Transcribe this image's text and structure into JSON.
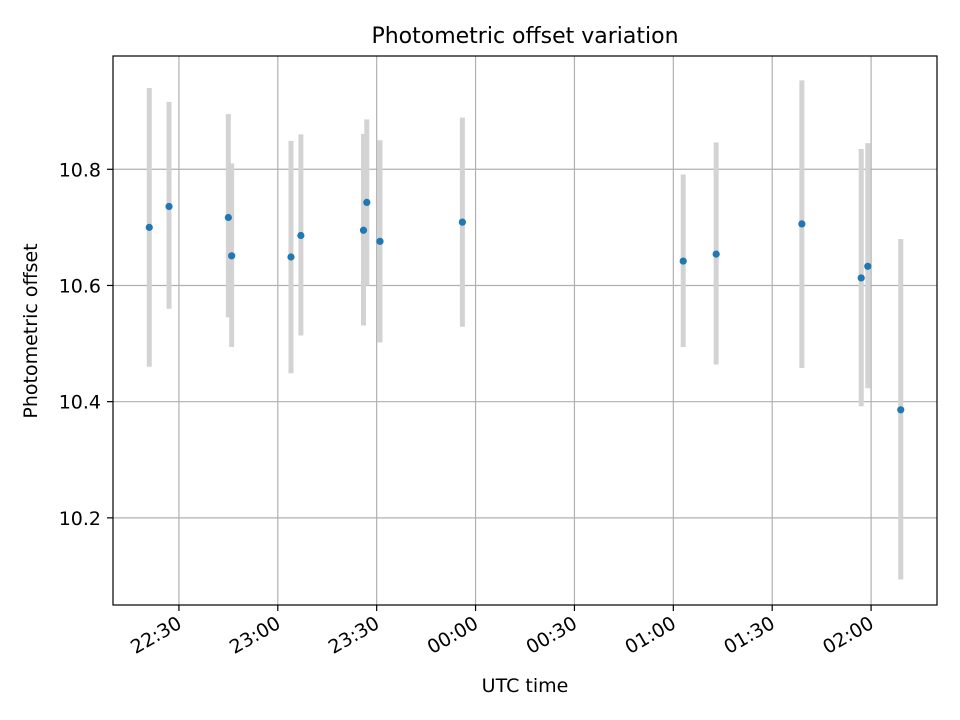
{
  "chart_data": {
    "type": "scatter",
    "title": "Photometric offset variation",
    "xlabel": "UTC time",
    "ylabel": "Photometric offset",
    "x_axis_type": "time",
    "xlim": [
      "22:10",
      "02:20"
    ],
    "ylim": [
      10.05,
      10.995
    ],
    "xticks": [
      "22:30",
      "23:00",
      "23:30",
      "00:00",
      "00:30",
      "01:00",
      "01:30",
      "02:00"
    ],
    "yticks": [
      10.2,
      10.4,
      10.6,
      10.8
    ],
    "grid": true,
    "point_color": "#1f77b4",
    "errorbar_color": "#d3d3d3",
    "points": [
      {
        "x": "22:21",
        "y": 10.7,
        "ylo": 10.46,
        "yhi": 10.94
      },
      {
        "x": "22:27",
        "y": 10.736,
        "ylo": 10.56,
        "yhi": 10.916
      },
      {
        "x": "22:45",
        "y": 10.717,
        "ylo": 10.545,
        "yhi": 10.895
      },
      {
        "x": "22:46",
        "y": 10.651,
        "ylo": 10.494,
        "yhi": 10.81
      },
      {
        "x": "23:04",
        "y": 10.649,
        "ylo": 10.449,
        "yhi": 10.849
      },
      {
        "x": "23:07",
        "y": 10.686,
        "ylo": 10.514,
        "yhi": 10.86
      },
      {
        "x": "23:26",
        "y": 10.695,
        "ylo": 10.531,
        "yhi": 10.861
      },
      {
        "x": "23:27",
        "y": 10.743,
        "ylo": 10.6,
        "yhi": 10.886
      },
      {
        "x": "23:31",
        "y": 10.676,
        "ylo": 10.502,
        "yhi": 10.85
      },
      {
        "x": "23:56",
        "y": 10.709,
        "ylo": 10.529,
        "yhi": 10.889
      },
      {
        "x": "01:03",
        "y": 10.642,
        "ylo": 10.494,
        "yhi": 10.791
      },
      {
        "x": "01:13",
        "y": 10.654,
        "ylo": 10.464,
        "yhi": 10.846
      },
      {
        "x": "01:39",
        "y": 10.706,
        "ylo": 10.458,
        "yhi": 10.953
      },
      {
        "x": "01:57",
        "y": 10.613,
        "ylo": 10.392,
        "yhi": 10.835
      },
      {
        "x": "01:59",
        "y": 10.633,
        "ylo": 10.423,
        "yhi": 10.845
      },
      {
        "x": "02:09",
        "y": 10.386,
        "ylo": 10.094,
        "yhi": 10.68
      }
    ]
  }
}
